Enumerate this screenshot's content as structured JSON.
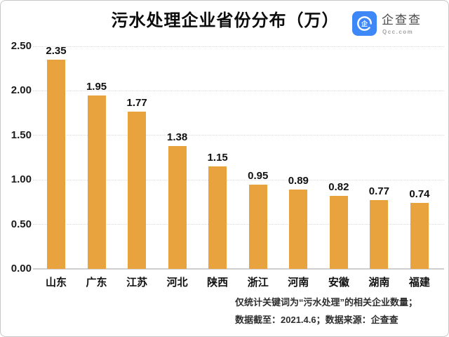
{
  "header": {
    "title": "污水处理企业省份分布（万）",
    "logo": {
      "name": "企查查",
      "subtext": "Qcc.com",
      "brand_color": "#3E87F7"
    }
  },
  "chart_data": {
    "type": "bar",
    "title": "污水处理企业省份分布（万）",
    "categories": [
      "山东",
      "广东",
      "江苏",
      "河北",
      "陕西",
      "浙江",
      "河南",
      "安徽",
      "湖南",
      "福建"
    ],
    "values": [
      2.35,
      1.95,
      1.77,
      1.38,
      1.15,
      0.95,
      0.89,
      0.82,
      0.77,
      0.74
    ],
    "value_labels": [
      "2.35",
      "1.95",
      "1.77",
      "1.38",
      "1.15",
      "0.95",
      "0.89",
      "0.82",
      "0.77",
      "0.74"
    ],
    "y_ticks": [
      "0.00",
      "0.50",
      "1.00",
      "1.50",
      "2.00",
      "2.50"
    ],
    "ylim": [
      0,
      2.5
    ],
    "xlabel": "",
    "ylabel": "",
    "grid": true,
    "legend": false,
    "bar_color": "#E8A33E"
  },
  "footer": {
    "line1": "仅统计关键词为“污水处理”的相关企业数量；",
    "line2": "数据截至：2021.4.6；数据来源：企查查"
  }
}
